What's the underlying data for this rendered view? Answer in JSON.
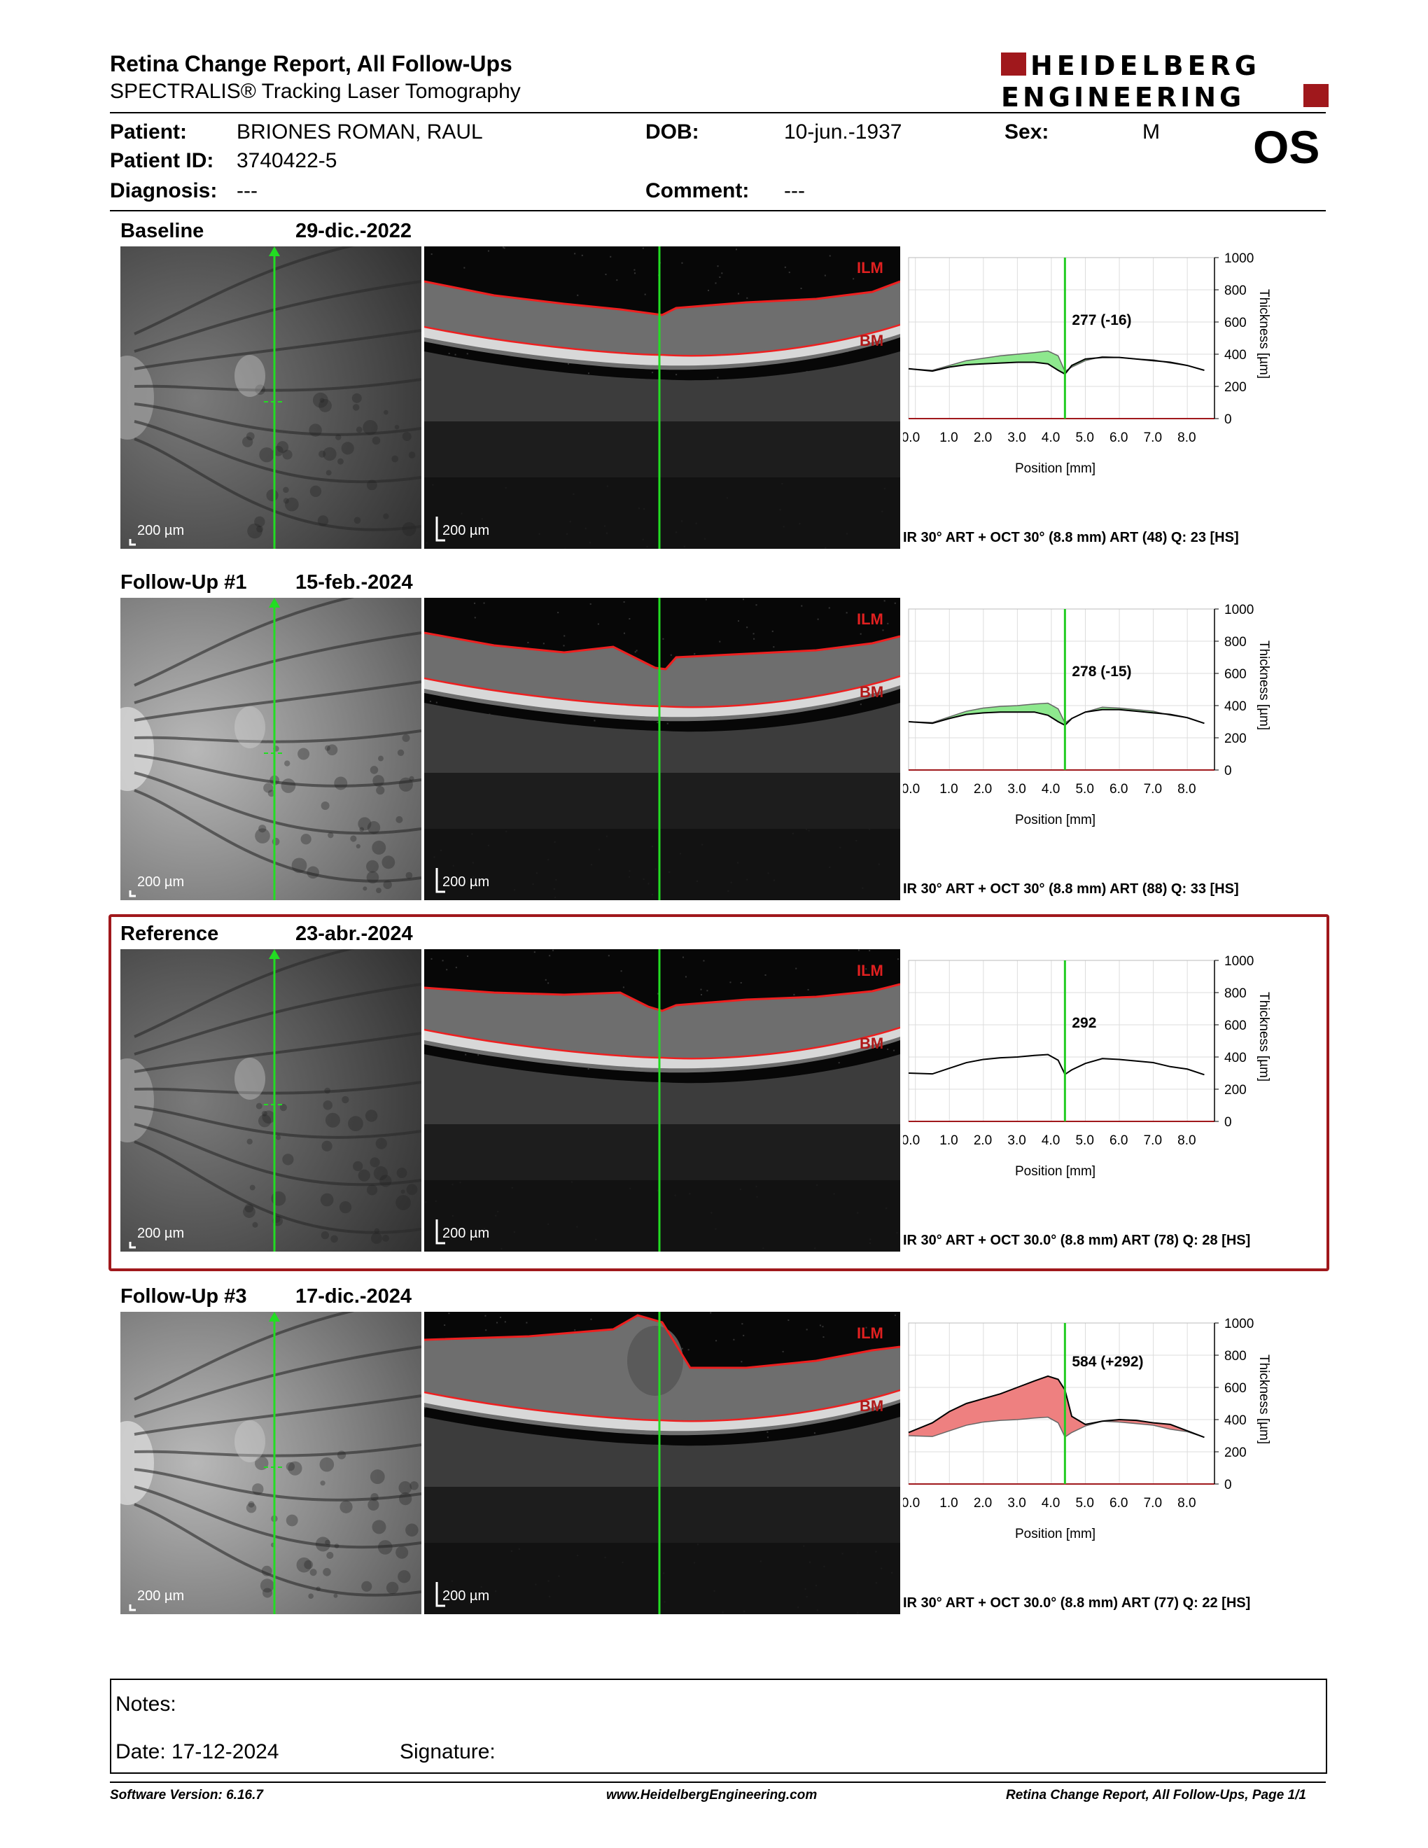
{
  "header": {
    "title": "Retina Change Report, All Follow-Ups",
    "subtitle": "SPECTRALIS® Tracking Laser Tomography",
    "logo_line1": "HEIDELBERG",
    "logo_line2": "ENGINEERING"
  },
  "patient": {
    "patient_label": "Patient:",
    "patient_value": "BRIONES ROMAN, RAUL",
    "dob_label": "DOB:",
    "dob_value": "10-jun.-1937",
    "sex_label": "Sex:",
    "sex_value": "M",
    "id_label": "Patient ID:",
    "id_value": "3740422-5",
    "diagnosis_label": "Diagnosis:",
    "diagnosis_value": "---",
    "comment_label": "Comment:",
    "comment_value": "---",
    "eye": "OS"
  },
  "scale_label": "200 µm",
  "ilm_label": "ILM",
  "bm_label": "BM",
  "xlabel": "Position [mm]",
  "ylabel": "Thickness [µm]",
  "xticks": [
    "0.0",
    "1.0",
    "2.0",
    "3.0",
    "4.0",
    "5.0",
    "6.0",
    "7.0",
    "8.0"
  ],
  "yticks": [
    "1000",
    "800",
    "600",
    "400",
    "200",
    "0"
  ],
  "sections": [
    {
      "name": "Baseline",
      "date": "29-dic.-2022",
      "callout": "277 (-16)",
      "footer": "IR 30° ART + OCT 30° (8.8 mm) ART (48) Q: 23 [HS]"
    },
    {
      "name": "Follow-Up #1",
      "date": "15-feb.-2024",
      "callout": "278 (-15)",
      "footer": "IR 30° ART + OCT 30° (8.8 mm) ART (88) Q: 33 [HS]"
    },
    {
      "name": "Reference",
      "date": "23-abr.-2024",
      "callout": "292",
      "footer": "IR 30° ART + OCT 30.0° (8.8 mm) ART (78) Q: 28 [HS]"
    },
    {
      "name": "Follow-Up #3",
      "date": "17-dic.-2024",
      "callout": "584 (+292)",
      "footer": "IR 30° ART + OCT 30.0° (8.8 mm) ART (77) Q: 22 [HS]"
    }
  ],
  "chart_data": [
    {
      "type": "line",
      "xlabel": "Position [mm]",
      "ylabel": "Thickness [µm]",
      "xlim": [
        -0.2,
        8.8
      ],
      "ylim": [
        0,
        1000
      ],
      "cursor_x": 4.4,
      "fill": "decrease",
      "x": [
        -0.2,
        0.5,
        1.0,
        1.5,
        2.0,
        2.5,
        3.0,
        3.5,
        3.9,
        4.2,
        4.4,
        4.6,
        5.0,
        5.5,
        6.0,
        6.5,
        7.0,
        7.5,
        8.0,
        8.5
      ],
      "series": [
        {
          "values": [
            310,
            295,
            320,
            335,
            340,
            345,
            350,
            350,
            340,
            300,
            277,
            330,
            370,
            380,
            380,
            370,
            360,
            350,
            330,
            300
          ]
        },
        {
          "values": [
            310,
            300,
            330,
            360,
            375,
            390,
            400,
            410,
            420,
            390,
            293,
            320,
            360,
            385,
            380,
            370,
            365,
            345,
            330,
            300
          ]
        }
      ]
    },
    {
      "type": "line",
      "xlabel": "Position [mm]",
      "ylabel": "Thickness [µm]",
      "xlim": [
        -0.2,
        8.8
      ],
      "ylim": [
        0,
        1000
      ],
      "cursor_x": 4.4,
      "fill": "decrease",
      "x": [
        -0.2,
        0.5,
        1.0,
        1.5,
        2.0,
        2.5,
        3.0,
        3.5,
        3.9,
        4.2,
        4.4,
        4.6,
        5.0,
        5.5,
        6.0,
        6.5,
        7.0,
        7.5,
        8.0,
        8.5
      ],
      "series": [
        {
          "values": [
            300,
            290,
            320,
            345,
            355,
            360,
            360,
            360,
            340,
            300,
            278,
            320,
            360,
            375,
            375,
            365,
            355,
            345,
            325,
            290
          ]
        },
        {
          "values": [
            300,
            295,
            330,
            365,
            385,
            395,
            400,
            410,
            415,
            380,
            293,
            320,
            360,
            390,
            385,
            375,
            365,
            340,
            325,
            290
          ]
        }
      ]
    },
    {
      "type": "line",
      "xlabel": "Position [mm]",
      "ylabel": "Thickness [µm]",
      "xlim": [
        -0.2,
        8.8
      ],
      "ylim": [
        0,
        1000
      ],
      "cursor_x": 4.4,
      "fill": "none",
      "x": [
        -0.2,
        0.5,
        1.0,
        1.5,
        2.0,
        2.5,
        3.0,
        3.5,
        3.9,
        4.2,
        4.4,
        4.6,
        5.0,
        5.5,
        6.0,
        6.5,
        7.0,
        7.5,
        8.0,
        8.5
      ],
      "series": [
        {
          "values": [
            300,
            295,
            330,
            365,
            385,
            395,
            400,
            410,
            415,
            380,
            292,
            320,
            360,
            390,
            385,
            375,
            365,
            340,
            325,
            290
          ]
        }
      ]
    },
    {
      "type": "line",
      "xlabel": "Position [mm]",
      "ylabel": "Thickness [µm]",
      "xlim": [
        -0.2,
        8.8
      ],
      "ylim": [
        0,
        1000
      ],
      "cursor_x": 4.4,
      "fill": "increase",
      "x": [
        -0.2,
        0.5,
        1.0,
        1.5,
        2.0,
        2.5,
        3.0,
        3.5,
        3.9,
        4.2,
        4.4,
        4.6,
        5.0,
        5.5,
        6.0,
        6.5,
        7.0,
        7.5,
        8.0,
        8.5
      ],
      "series": [
        {
          "values": [
            320,
            380,
            450,
            500,
            530,
            560,
            600,
            640,
            670,
            650,
            584,
            420,
            370,
            390,
            400,
            395,
            380,
            370,
            330,
            290
          ]
        },
        {
          "values": [
            300,
            295,
            330,
            365,
            385,
            395,
            400,
            410,
            415,
            380,
            292,
            320,
            360,
            390,
            385,
            375,
            365,
            340,
            325,
            290
          ]
        }
      ]
    }
  ],
  "notes": {
    "notes_label": "Notes:",
    "date_label": "Date: 17-12-2024",
    "signature_label": "Signature:"
  },
  "footer": {
    "software": "Software Version: 6.16.7",
    "website": "www.HeidelbergEngineering.com",
    "page": "Retina Change Report, All Follow-Ups, Page 1/1"
  },
  "colors": {
    "accent": "#a0181c",
    "cursor": "#22cc22",
    "decrease": "#8ee88e",
    "increase": "#ee8080"
  }
}
